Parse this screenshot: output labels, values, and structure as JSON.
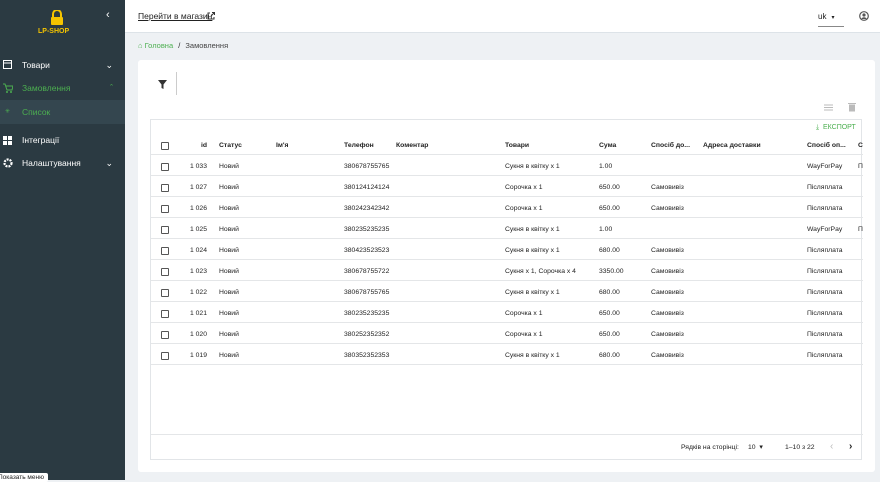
{
  "sidebar": {
    "logo": "LP-SHOP",
    "menu": [
      {
        "label": "Товари"
      },
      {
        "label": "Замовлення",
        "children": [
          "Список"
        ]
      },
      {
        "label": "Інтеграції"
      },
      {
        "label": "Налаштування"
      }
    ],
    "tooltip": "Показать меню"
  },
  "topbar": {
    "store_link": "Перейти в магазин",
    "language": "uk"
  },
  "breadcrumb": {
    "home": "Головна",
    "separator": "/",
    "current": "Замовлення"
  },
  "toolbar": {
    "export": "ЕКСПОРТ"
  },
  "table": {
    "columns": [
      "id",
      "Статус",
      "Ім'я",
      "Телефон",
      "Коментар",
      "Товари",
      "Сума",
      "Спосіб до...",
      "Адреса доставки",
      "Спосіб оп...",
      "С"
    ],
    "rows": [
      [
        "1 033",
        "Новий",
        null,
        "380678755765",
        null,
        "Сукня в квітку x 1",
        "1.00",
        null,
        null,
        "WayForPay",
        "П"
      ],
      [
        "1 027",
        "Новий",
        null,
        "380124124124",
        null,
        "Сорочка x 1",
        "650.00",
        "Самовивіз",
        null,
        "Післяплата",
        null
      ],
      [
        "1 026",
        "Новий",
        null,
        "380242342342",
        null,
        "Сорочка x 1",
        "650.00",
        "Самовивіз",
        null,
        "Післяплата",
        null
      ],
      [
        "1 025",
        "Новий",
        null,
        "380235235235",
        null,
        "Сукня в квітку x 1",
        "1.00",
        null,
        null,
        "WayForPay",
        "П"
      ],
      [
        "1 024",
        "Новий",
        null,
        "380423523523",
        null,
        "Сукня в квітку x 1",
        "680.00",
        "Самовивіз",
        null,
        "Післяплата",
        null
      ],
      [
        "1 023",
        "Новий",
        null,
        "380678755722",
        null,
        "Сукня x 1, Сорочка x 4",
        "3350.00",
        "Самовивіз",
        null,
        "Післяплата",
        null
      ],
      [
        "1 022",
        "Новий",
        null,
        "380678755765",
        null,
        "Сукня в квітку x 1",
        "680.00",
        "Самовивіз",
        null,
        "Післяплата",
        null
      ],
      [
        "1 021",
        "Новий",
        null,
        "380235235235",
        null,
        "Сорочка x 1",
        "650.00",
        "Самовивіз",
        null,
        "Післяплата",
        null
      ],
      [
        "1 020",
        "Новий",
        null,
        "380252352352",
        null,
        "Сорочка x 1",
        "650.00",
        "Самовивіз",
        null,
        "Післяплата",
        null
      ],
      [
        "1 019",
        "Новий",
        null,
        "380352352353",
        null,
        "Сукня в квітку x 1",
        "680.00",
        "Самовивіз",
        null,
        "Післяплата",
        null
      ]
    ]
  },
  "pagination": {
    "rows_per_page_label": "Рядків на сторінці:",
    "rows_per_page": "10",
    "range": "1–10 з 22"
  }
}
